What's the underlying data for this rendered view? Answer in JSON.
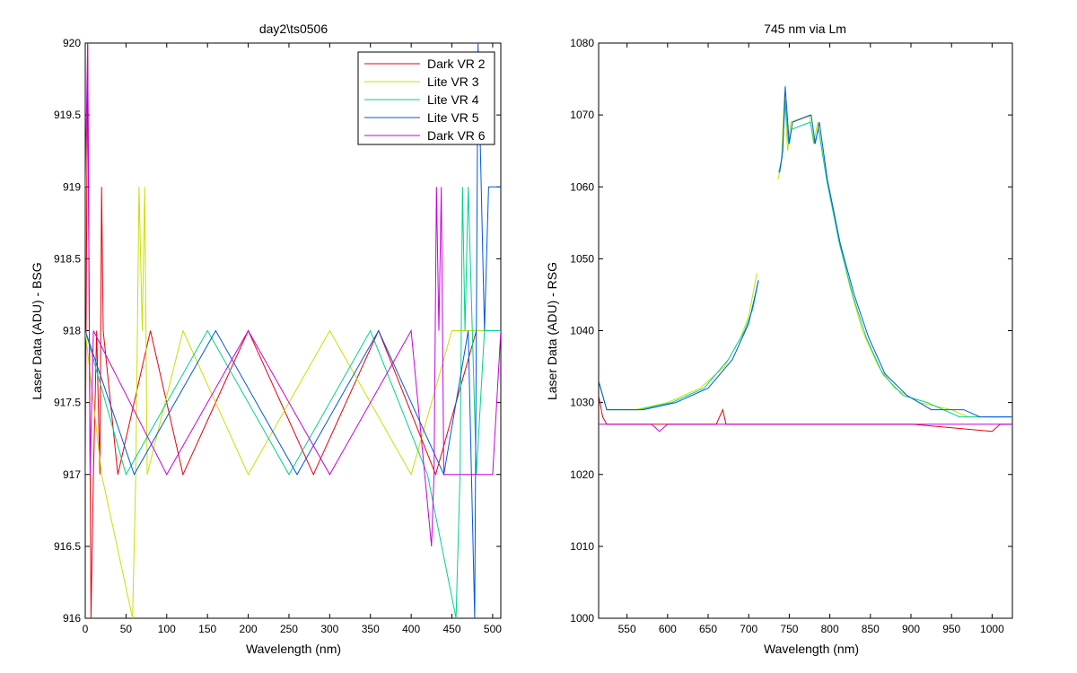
{
  "chart_data": [
    {
      "type": "line",
      "title": "day2\\ts0506",
      "xlabel": "Wavelength (nm)",
      "ylabel": "Laser Data (ADU) - BSG",
      "xlim": [
        0,
        510
      ],
      "ylim": [
        916,
        920
      ],
      "xticks": [
        0,
        50,
        100,
        150,
        200,
        250,
        300,
        350,
        400,
        450,
        500
      ],
      "yticks": [
        916,
        916.5,
        917,
        917.5,
        918,
        918.5,
        919,
        919.5,
        920
      ],
      "legend_position": "top-right",
      "series": [
        {
          "name": "Dark VR 2",
          "color": "#e8000b",
          "points": [
            [
              0,
              917
            ],
            [
              3,
              920
            ],
            [
              7,
              916
            ],
            [
              10,
              917
            ],
            [
              14,
              918
            ],
            [
              18,
              917
            ],
            [
              20,
              919
            ],
            [
              22,
              918
            ],
            [
              40,
              917
            ],
            [
              80,
              918
            ],
            [
              120,
              917
            ],
            [
              200,
              918
            ],
            [
              280,
              917
            ],
            [
              360,
              918
            ],
            [
              430,
              917
            ],
            [
              480,
              918
            ],
            [
              510,
              918
            ]
          ]
        },
        {
          "name": "Lite VR 3",
          "color": "#c8e000",
          "points": [
            [
              0,
              918
            ],
            [
              20,
              917
            ],
            [
              58,
              916
            ],
            [
              62,
              917
            ],
            [
              66,
              919
            ],
            [
              70,
              918
            ],
            [
              73,
              919
            ],
            [
              76,
              917
            ],
            [
              120,
              918
            ],
            [
              200,
              917
            ],
            [
              300,
              918
            ],
            [
              400,
              917
            ],
            [
              450,
              918
            ],
            [
              510,
              918
            ]
          ]
        },
        {
          "name": "Lite VR 4",
          "color": "#00d28c",
          "points": [
            [
              0,
              918
            ],
            [
              50,
              917
            ],
            [
              150,
              918
            ],
            [
              250,
              917
            ],
            [
              350,
              918
            ],
            [
              420,
              917
            ],
            [
              455,
              916
            ],
            [
              460,
              917
            ],
            [
              463,
              919
            ],
            [
              466,
              918
            ],
            [
              470,
              919
            ],
            [
              480,
              917
            ],
            [
              490,
              918
            ],
            [
              510,
              918
            ]
          ]
        },
        {
          "name": "Lite VR 5",
          "color": "#0057e0",
          "points": [
            [
              0,
              918
            ],
            [
              60,
              917
            ],
            [
              160,
              918
            ],
            [
              260,
              917
            ],
            [
              360,
              918
            ],
            [
              440,
              917
            ],
            [
              470,
              918
            ],
            [
              478,
              916
            ],
            [
              482,
              920
            ],
            [
              486,
              919
            ],
            [
              490,
              918
            ],
            [
              495,
              919
            ],
            [
              500,
              919
            ],
            [
              510,
              919
            ]
          ]
        },
        {
          "name": "Dark VR 6",
          "color": "#c800e0",
          "points": [
            [
              0,
              919
            ],
            [
              3,
              920
            ],
            [
              6,
              917
            ],
            [
              10,
              918
            ],
            [
              100,
              917
            ],
            [
              200,
              918
            ],
            [
              300,
              917
            ],
            [
              400,
              918
            ],
            [
              425,
              916.5
            ],
            [
              428,
              917
            ],
            [
              431,
              919
            ],
            [
              434,
              918
            ],
            [
              437,
              919
            ],
            [
              440,
              917
            ],
            [
              500,
              917
            ],
            [
              510,
              918
            ]
          ]
        }
      ]
    },
    {
      "type": "line",
      "title": "745 nm via Lm",
      "xlabel": "Wavelength (nm)",
      "ylabel": "Laser Data (ADU) - RSG",
      "xlim": [
        515,
        1025
      ],
      "ylim": [
        1000,
        1080
      ],
      "xticks": [
        550,
        600,
        650,
        700,
        750,
        800,
        850,
        900,
        950,
        1000
      ],
      "yticks": [
        1000,
        1010,
        1020,
        1030,
        1040,
        1050,
        1060,
        1070,
        1080
      ],
      "series": [
        {
          "name": "Dark VR 2",
          "color": "#e8000b",
          "points": [
            [
              515,
              1031
            ],
            [
              520,
              1028
            ],
            [
              525,
              1027
            ],
            [
              600,
              1027
            ],
            [
              660,
              1027
            ],
            [
              668,
              1029
            ],
            [
              672,
              1027
            ],
            [
              720,
              1027
            ],
            [
              800,
              1027
            ],
            [
              900,
              1027
            ],
            [
              1000,
              1026
            ],
            [
              1010,
              1027
            ],
            [
              1025,
              1027
            ]
          ]
        },
        {
          "name": "Lite VR 3",
          "color": "#c8e000",
          "points": [
            [
              515,
              1033
            ],
            [
              525,
              1029
            ],
            [
              560,
              1029
            ],
            [
              600,
              1030
            ],
            [
              640,
              1032
            ],
            [
              670,
              1035
            ],
            [
              690,
              1039
            ],
            [
              700,
              1042
            ],
            [
              710,
              1048
            ]
          ]
        },
        {
          "name": "Lite VR 4",
          "color": "#00d28c",
          "points": [
            [
              515,
              1033
            ],
            [
              525,
              1029
            ],
            [
              565,
              1029
            ],
            [
              605,
              1030
            ],
            [
              645,
              1032
            ],
            [
              675,
              1036
            ],
            [
              695,
              1040
            ],
            [
              705,
              1043
            ],
            [
              712,
              1047
            ]
          ]
        },
        {
          "name": "Lite VR 5",
          "color": "#0057e0",
          "points": [
            [
              515,
              1033
            ],
            [
              525,
              1029
            ],
            [
              570,
              1029
            ],
            [
              610,
              1030
            ],
            [
              650,
              1032
            ],
            [
              680,
              1036
            ],
            [
              700,
              1041
            ],
            [
              712,
              1047
            ]
          ]
        },
        {
          "name": "Dark VR 6",
          "color": "#c800e0",
          "points": [
            [
              515,
              1027
            ],
            [
              560,
              1027
            ],
            [
              580,
              1027
            ],
            [
              590,
              1026
            ],
            [
              600,
              1027
            ],
            [
              700,
              1027
            ],
            [
              800,
              1027
            ],
            [
              900,
              1027
            ],
            [
              1000,
              1027
            ],
            [
              1025,
              1027
            ]
          ]
        },
        {
          "name": "Lite VR 3",
          "color": "#c8e000",
          "points": [
            [
              736,
              1061
            ],
            [
              740,
              1063
            ],
            [
              744,
              1073
            ],
            [
              748,
              1065
            ],
            [
              752,
              1069
            ],
            [
              775,
              1070
            ],
            [
              780,
              1066
            ],
            [
              785,
              1069
            ],
            [
              795,
              1062
            ],
            [
              810,
              1053
            ],
            [
              825,
              1046
            ],
            [
              840,
              1040
            ],
            [
              860,
              1035
            ],
            [
              880,
              1032
            ],
            [
              910,
              1030
            ],
            [
              950,
              1029
            ],
            [
              970,
              1028
            ],
            [
              1025,
              1028
            ]
          ]
        },
        {
          "name": "Lite VR 4",
          "color": "#00d28c",
          "points": [
            [
              737,
              1062
            ],
            [
              741,
              1064
            ],
            [
              745,
              1072
            ],
            [
              749,
              1066
            ],
            [
              753,
              1068
            ],
            [
              776,
              1069
            ],
            [
              781,
              1066
            ],
            [
              786,
              1068
            ],
            [
              796,
              1061
            ],
            [
              812,
              1052
            ],
            [
              828,
              1045
            ],
            [
              845,
              1039
            ],
            [
              865,
              1034
            ],
            [
              890,
              1031
            ],
            [
              920,
              1030
            ],
            [
              960,
              1028
            ],
            [
              1025,
              1028
            ]
          ]
        },
        {
          "name": "Lite VR 5",
          "color": "#0057e0",
          "points": [
            [
              738,
              1062
            ],
            [
              742,
              1065
            ],
            [
              745,
              1074
            ],
            [
              750,
              1066
            ],
            [
              754,
              1069
            ],
            [
              777,
              1070
            ],
            [
              782,
              1066
            ],
            [
              787,
              1069
            ],
            [
              797,
              1061
            ],
            [
              813,
              1052
            ],
            [
              830,
              1045
            ],
            [
              848,
              1039
            ],
            [
              868,
              1034
            ],
            [
              895,
              1031
            ],
            [
              925,
              1029
            ],
            [
              965,
              1029
            ],
            [
              985,
              1028
            ],
            [
              1025,
              1028
            ]
          ]
        }
      ]
    }
  ]
}
